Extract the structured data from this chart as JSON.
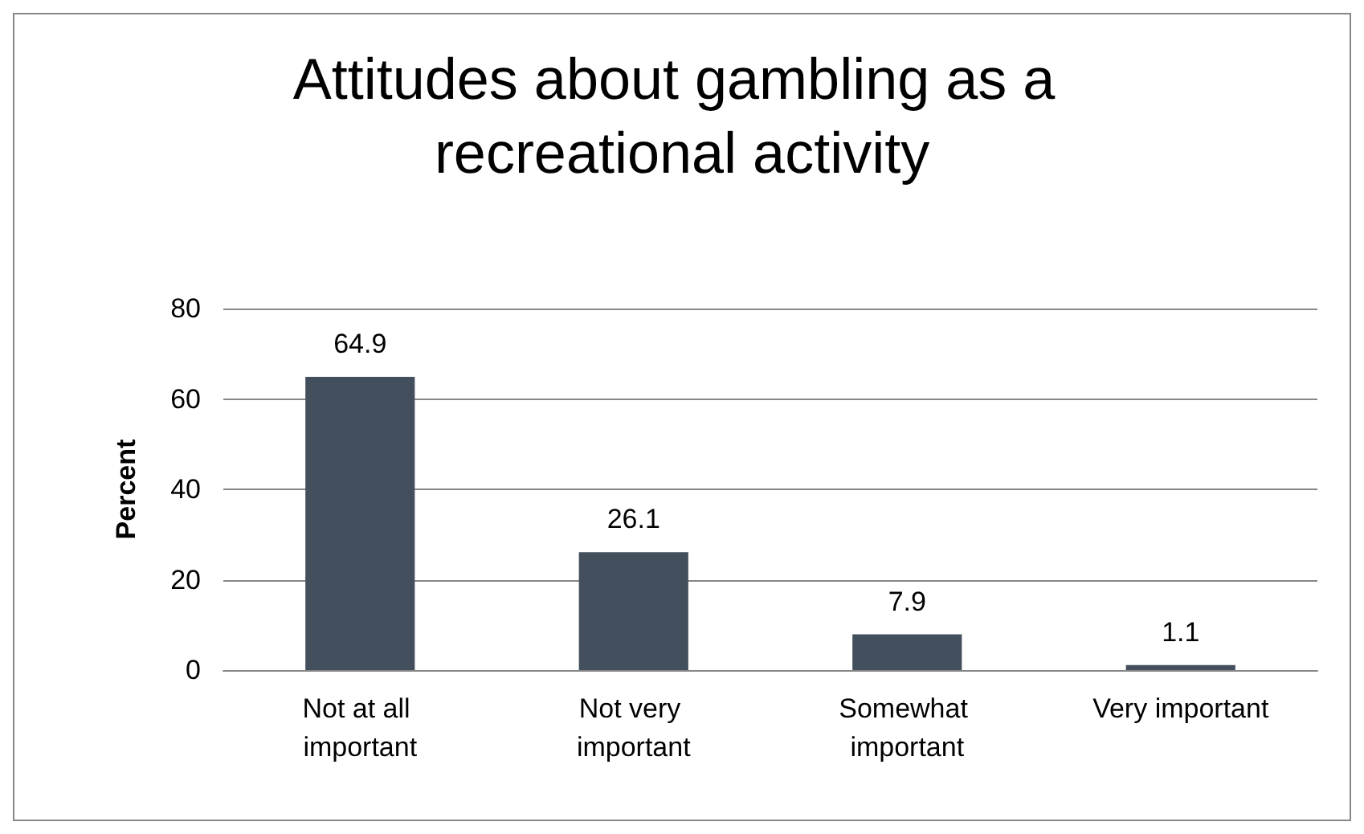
{
  "chart_data": {
    "type": "bar",
    "title": "Attitudes about gambling as a recreational activity",
    "ylabel": "Percent",
    "categories": [
      "Not at all important",
      "Not very important",
      "Somewhat important",
      "Very important"
    ],
    "values": [
      64.9,
      26.1,
      7.9,
      1.1
    ],
    "color": "#434f5d",
    "ylim": [
      0,
      80
    ],
    "yticks": [
      0,
      20,
      40,
      60,
      80
    ],
    "grid": "y",
    "data_labels": true
  }
}
